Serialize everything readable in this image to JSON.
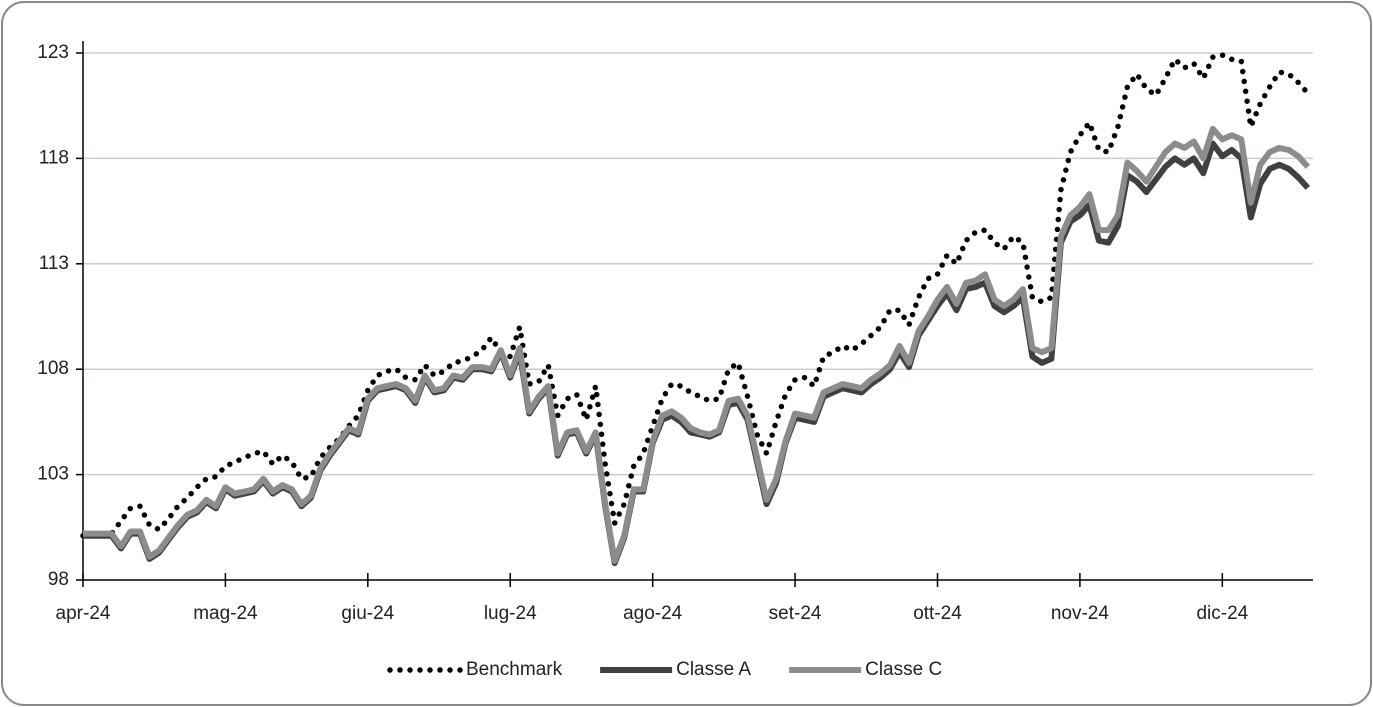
{
  "chart_data": {
    "type": "line",
    "categories": [
      "apr-24",
      null,
      null,
      null,
      null,
      null,
      null,
      null,
      null,
      null,
      null,
      null,
      null,
      null,
      null,
      "mag-24",
      null,
      null,
      null,
      null,
      null,
      null,
      null,
      null,
      null,
      null,
      null,
      null,
      null,
      null,
      "giu-24",
      null,
      null,
      null,
      null,
      null,
      null,
      null,
      null,
      null,
      null,
      null,
      null,
      null,
      null,
      "lug-24",
      null,
      null,
      null,
      null,
      null,
      null,
      null,
      null,
      null,
      null,
      null,
      null,
      null,
      null,
      "ago-24",
      null,
      null,
      null,
      null,
      null,
      null,
      null,
      null,
      null,
      null,
      null,
      null,
      null,
      null,
      "set-24",
      null,
      null,
      null,
      null,
      null,
      null,
      null,
      null,
      null,
      null,
      null,
      null,
      null,
      null,
      "ott-24",
      null,
      null,
      null,
      null,
      null,
      null,
      null,
      null,
      null,
      null,
      null,
      null,
      null,
      null,
      "nov-24",
      null,
      null,
      null,
      null,
      null,
      null,
      null,
      null,
      null,
      null,
      null,
      null,
      null,
      null,
      "dic-24",
      null,
      null,
      null,
      null,
      null,
      null,
      null,
      null,
      null
    ],
    "series": [
      {
        "name": "Benchmark",
        "color": "#000000",
        "style": "dotted",
        "values": [
          100.1,
          100.1,
          100.2,
          100.2,
          100.8,
          101.4,
          101.5,
          100.6,
          100.4,
          100.9,
          101.5,
          101.9,
          102.4,
          102.8,
          102.9,
          103.4,
          103.6,
          103.8,
          104.0,
          104.1,
          103.5,
          103.9,
          103.6,
          102.8,
          102.9,
          103.8,
          104.3,
          104.7,
          105.3,
          105.8,
          107.0,
          107.7,
          107.9,
          108.0,
          107.6,
          107.5,
          108.2,
          107.7,
          107.9,
          108.3,
          108.4,
          108.6,
          108.9,
          109.5,
          108.8,
          108.6,
          110.0,
          107.3,
          107.4,
          108.2,
          105.8,
          106.6,
          106.8,
          105.6,
          107.2,
          103.5,
          100.7,
          101.6,
          103.4,
          104.0,
          105.3,
          106.6,
          107.3,
          107.2,
          106.9,
          106.7,
          106.5,
          106.6,
          108.0,
          108.3,
          106.7,
          104.9,
          104.0,
          105.5,
          106.8,
          107.5,
          107.6,
          107.2,
          108.6,
          108.8,
          109.1,
          108.9,
          109.2,
          109.6,
          110.0,
          110.8,
          110.8,
          110.1,
          111.4,
          112.3,
          112.5,
          113.4,
          113.0,
          114.1,
          114.5,
          114.6,
          114.0,
          113.7,
          114.3,
          114.0,
          111.4,
          111.2,
          111.4,
          116.5,
          118.3,
          119.1,
          119.7,
          118.4,
          118.3,
          119.5,
          121.4,
          122.0,
          121.3,
          121.0,
          121.8,
          122.7,
          122.3,
          122.5,
          121.8,
          122.8,
          122.9,
          122.7,
          122.6,
          119.5,
          120.6,
          121.4,
          122.1,
          122.0,
          121.6,
          121.1
        ]
      },
      {
        "name": "Classe A",
        "color": "#404040",
        "style": "solid",
        "values": [
          100.1,
          100.1,
          100.1,
          100.1,
          99.5,
          100.2,
          100.2,
          99.0,
          99.3,
          99.9,
          100.5,
          101.0,
          101.2,
          101.7,
          101.4,
          102.3,
          102.0,
          102.1,
          102.2,
          102.7,
          102.1,
          102.4,
          102.2,
          101.5,
          101.9,
          103.2,
          103.9,
          104.5,
          105.1,
          104.9,
          106.5,
          107.0,
          107.1,
          107.2,
          107.0,
          106.4,
          107.6,
          106.9,
          107.0,
          107.6,
          107.5,
          108.0,
          108.0,
          107.9,
          108.8,
          107.6,
          108.8,
          105.9,
          106.6,
          107.1,
          103.9,
          104.9,
          105.0,
          104.0,
          104.9,
          101.5,
          98.8,
          100.0,
          102.2,
          102.2,
          104.5,
          105.6,
          105.8,
          105.5,
          105.0,
          104.9,
          104.8,
          105.0,
          106.3,
          106.4,
          105.6,
          103.6,
          101.6,
          102.6,
          104.5,
          105.7,
          105.6,
          105.5,
          106.7,
          106.9,
          107.1,
          107.0,
          106.9,
          107.3,
          107.6,
          108.0,
          108.8,
          108.1,
          109.6,
          110.3,
          111.0,
          111.6,
          110.8,
          111.8,
          111.9,
          112.1,
          111.0,
          110.7,
          111.0,
          111.4,
          108.6,
          108.3,
          108.5,
          114.0,
          115.0,
          115.3,
          115.8,
          114.1,
          114.0,
          114.8,
          117.2,
          116.9,
          116.4,
          117.0,
          117.6,
          118.0,
          117.7,
          118.0,
          117.3,
          118.7,
          118.1,
          118.4,
          118.0,
          115.2,
          116.8,
          117.5,
          117.7,
          117.5,
          117.1,
          116.6
        ]
      },
      {
        "name": "Classe C",
        "color": "#8c8c8c",
        "style": "solid",
        "values": [
          100.2,
          100.2,
          100.2,
          100.2,
          99.6,
          100.3,
          100.3,
          99.1,
          99.4,
          100.0,
          100.6,
          101.1,
          101.3,
          101.8,
          101.5,
          102.4,
          102.1,
          102.2,
          102.3,
          102.8,
          102.2,
          102.5,
          102.3,
          101.6,
          102.0,
          103.3,
          104.0,
          104.6,
          105.2,
          105.0,
          106.6,
          107.1,
          107.2,
          107.3,
          107.1,
          106.5,
          107.7,
          107.0,
          107.1,
          107.7,
          107.6,
          108.1,
          108.1,
          108.0,
          108.9,
          107.7,
          109.0,
          106.0,
          106.7,
          107.2,
          104.0,
          105.0,
          105.1,
          104.1,
          105.0,
          101.6,
          98.9,
          100.1,
          102.3,
          102.3,
          104.6,
          105.8,
          106.0,
          105.7,
          105.2,
          105.0,
          104.9,
          105.1,
          106.5,
          106.6,
          105.8,
          103.8,
          101.8,
          102.8,
          104.6,
          105.9,
          105.8,
          105.7,
          106.9,
          107.1,
          107.3,
          107.2,
          107.1,
          107.5,
          107.8,
          108.2,
          109.1,
          108.3,
          109.8,
          110.5,
          111.3,
          111.9,
          111.1,
          112.1,
          112.2,
          112.5,
          111.3,
          111.0,
          111.3,
          111.8,
          109.0,
          108.8,
          109.0,
          114.3,
          115.3,
          115.7,
          116.3,
          114.6,
          114.6,
          115.3,
          117.8,
          117.4,
          116.9,
          117.6,
          118.3,
          118.7,
          118.5,
          118.8,
          118.0,
          119.4,
          118.9,
          119.1,
          118.9,
          115.9,
          117.7,
          118.3,
          118.5,
          118.4,
          118.1,
          117.6
        ]
      }
    ],
    "ylim": [
      98,
      123
    ],
    "yticks": [
      98,
      103,
      108,
      113,
      118,
      123
    ],
    "grid": true,
    "legend": "bottom"
  }
}
